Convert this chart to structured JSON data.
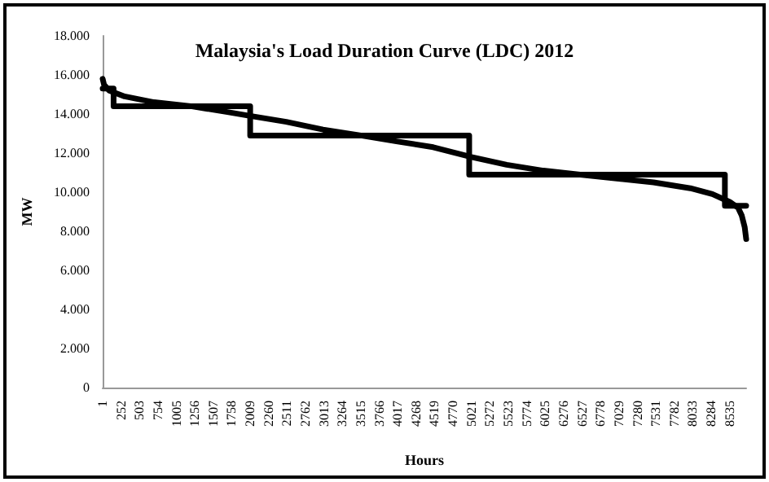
{
  "chart_data": {
    "type": "line",
    "title": "Malaysia's Load Duration Curve (LDC) 2012",
    "xlabel": "Hours",
    "ylabel": "MW",
    "xlim": [
      1,
      8760
    ],
    "xticks": [
      1,
      252,
      503,
      754,
      1005,
      1256,
      1507,
      1758,
      2009,
      2260,
      2511,
      2762,
      3013,
      3264,
      3515,
      3766,
      4017,
      4268,
      4519,
      4770,
      5021,
      5272,
      5523,
      5774,
      6025,
      6276,
      6527,
      6778,
      7029,
      7280,
      7531,
      7782,
      8033,
      8284,
      8535
    ],
    "ylim": [
      0,
      18000
    ],
    "yticks": [
      {
        "value": 0,
        "label": "0"
      },
      {
        "value": 2000,
        "label": "2.000"
      },
      {
        "value": 4000,
        "label": "4.000"
      },
      {
        "value": 6000,
        "label": "6.000"
      },
      {
        "value": 8000,
        "label": "8.000"
      },
      {
        "value": 10000,
        "label": "10.000"
      },
      {
        "value": 12000,
        "label": "12.000"
      },
      {
        "value": 14000,
        "label": "14.000"
      },
      {
        "value": 16000,
        "label": "16.000"
      },
      {
        "value": 18000,
        "label": "18.000"
      }
    ],
    "grid": false,
    "marker": "none",
    "line_style": "solid",
    "series": [
      {
        "color": "#000000",
        "x": [
          1,
          20,
          90,
          300,
          700,
          1200,
          1700,
          2009,
          2500,
          3000,
          3515,
          4000,
          4500,
          5021,
          5500,
          6000,
          6500,
          7000,
          7500,
          8000,
          8300,
          8535,
          8650,
          8700,
          8740,
          8760
        ],
        "values": [
          15800,
          15500,
          15200,
          14900,
          14600,
          14400,
          14100,
          13900,
          13600,
          13200,
          12900,
          12600,
          12300,
          11800,
          11400,
          11100,
          10900,
          10700,
          10500,
          10200,
          9900,
          9500,
          9200,
          8800,
          8200,
          7600
        ]
      },
      {
        "type": "step",
        "color": "#000000",
        "x": [
          1,
          150,
          2009,
          4990,
          8470,
          8760
        ],
        "values": [
          15300,
          14400,
          12900,
          10900,
          9300,
          9300
        ]
      }
    ]
  }
}
